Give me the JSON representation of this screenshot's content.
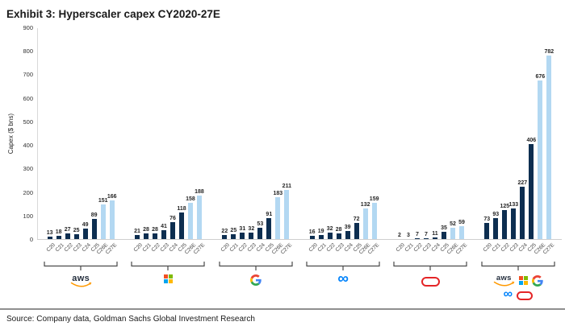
{
  "title": "Exhibit 3: Hyperscaler capex CY2020-27E",
  "source": "Source: Company data, Goldman Sachs Global Investment Research",
  "chart_data": {
    "type": "bar",
    "title": "Exhibit 3: Hyperscaler capex CY2020-27E",
    "ylabel": "Capex ($ bns)",
    "ylim": [
      0,
      900
    ],
    "ytick_interval": 100,
    "grid": false,
    "legend_position": "none",
    "categories": [
      "C20",
      "C21",
      "C22",
      "C23",
      "C24",
      "C25",
      "C26E",
      "C27E"
    ],
    "actual_color": "#0d2e50",
    "estimate_color": "#b3d8f2",
    "estimate_from_index": 6,
    "series": [
      {
        "name": "AWS",
        "logo": "aws-logo",
        "values": [
          13,
          18,
          27,
          25,
          49,
          89,
          151,
          166
        ]
      },
      {
        "name": "Microsoft",
        "logo": "microsoft-logo",
        "values": [
          21,
          28,
          28,
          41,
          76,
          118,
          158,
          188
        ]
      },
      {
        "name": "Google",
        "logo": "google-logo",
        "values": [
          22,
          25,
          31,
          32,
          53,
          91,
          183,
          211
        ]
      },
      {
        "name": "Meta",
        "logo": "meta-logo",
        "values": [
          16,
          19,
          32,
          28,
          39,
          72,
          132,
          159
        ]
      },
      {
        "name": "Oracle",
        "logo": "oracle-logo",
        "values": [
          2,
          3,
          7,
          7,
          11,
          35,
          52,
          59
        ]
      },
      {
        "name": "Combined",
        "logo": "combined-logos",
        "values": [
          73,
          93,
          125,
          133,
          227,
          406,
          676,
          782
        ]
      }
    ]
  }
}
